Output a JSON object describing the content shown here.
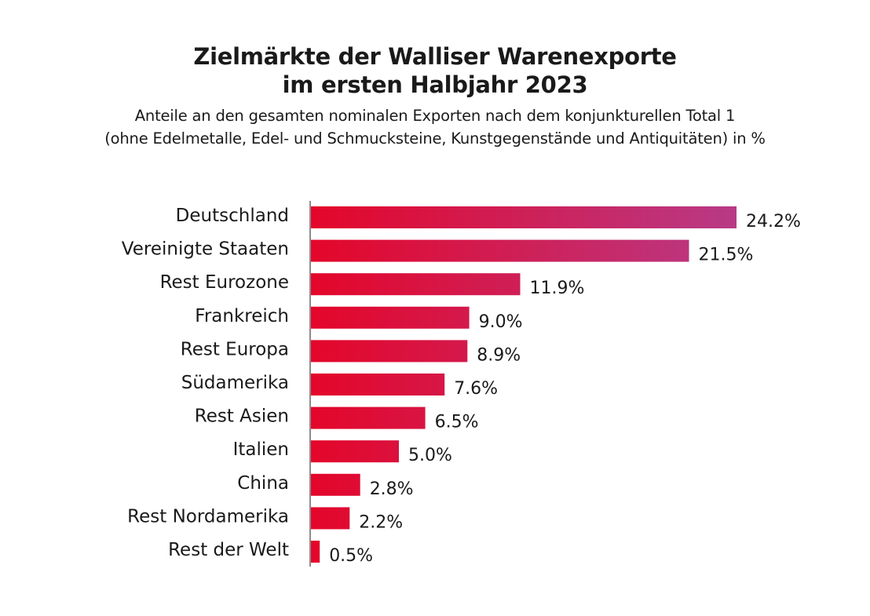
{
  "chart_data": {
    "type": "bar",
    "orientation": "horizontal",
    "title": [
      "Zielmärkte der Walliser Warenexporte",
      "im ersten Halbjahr 2023"
    ],
    "subtitle": [
      "Anteile an den gesamten nominalen Exporten nach dem konjunkturellen Total 1",
      "(ohne Edelmetalle, Edel- und Schmucksteine, Kunstgegenstände und Antiquitäten) in %"
    ],
    "categories": [
      "Deutschland",
      "Vereinigte Staaten",
      "Rest Eurozone",
      "Frankreich",
      "Rest Europa",
      "Südamerika",
      "Rest Asien",
      "Italien",
      "China",
      "Rest Nordamerika",
      "Rest der Welt"
    ],
    "values": [
      24.2,
      21.5,
      11.9,
      9.0,
      8.9,
      7.6,
      6.5,
      5.0,
      2.8,
      2.2,
      0.5
    ],
    "value_labels": [
      "24.2%",
      "21.5%",
      "11.9%",
      "9.0%",
      "8.9%",
      "7.6%",
      "6.5%",
      "5.0%",
      "2.8%",
      "2.2%",
      "0.5%"
    ],
    "unit": "%",
    "xlim": [
      0,
      24.2
    ],
    "grid": false,
    "legend": "none",
    "colors": {
      "bar_low": "#e4062a",
      "bar_high": "#b83a86",
      "axis": "#8c8c8c"
    }
  }
}
